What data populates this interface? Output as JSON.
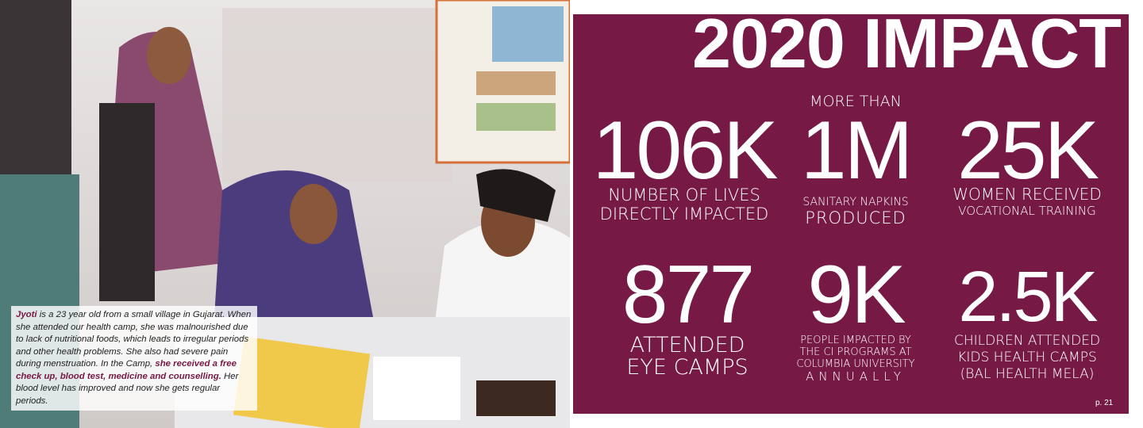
{
  "caption": {
    "name": "Jyoti",
    "text_1": " is a 23 year old from a small village in Gujarat. When she attended our health camp, she was malnourished due to lack of nutritional foods, which leads to irregular periods and other health problems. She also had severe pain during menstruation. In the Camp, ",
    "emphasis": "she received a free check up, blood test, medicine and counselling.",
    "text_2": " Her blood level has improved and now she gets regular periods."
  },
  "title": "2020 IMPACT",
  "stats": [
    {
      "value": "106K",
      "label": [
        "NUMBER OF LIVES",
        "DIRECTLY IMPACTED"
      ]
    },
    {
      "prefix": "MORE THAN",
      "value": "1M",
      "label": [
        "SANITARY NAPKINS",
        "PRODUCED"
      ]
    },
    {
      "value": "25K",
      "label": [
        "WOMEN RECEIVED",
        "VOCATIONAL TRAINING"
      ]
    },
    {
      "value": "877",
      "label": [
        "ATTENDED",
        "EYE CAMPS"
      ]
    },
    {
      "value": "9K",
      "label": [
        "PEOPLE IMPACTED BY",
        "THE CI PROGRAMS AT",
        "COLUMBIA UNIVERSITY",
        "ANNUALLY"
      ]
    },
    {
      "value": "2.5K",
      "label": [
        "CHILDREN ATTENDED",
        "KIDS HEALTH CAMPS",
        "(BAL HEALTH MELA)"
      ]
    }
  ],
  "page": "p. 21"
}
